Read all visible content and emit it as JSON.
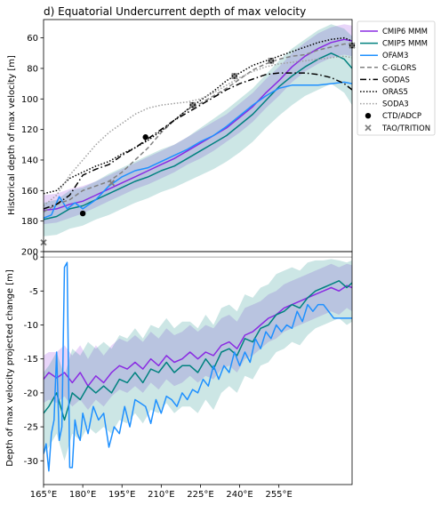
{
  "figure": {
    "title": "d) Equatorial Undercurrent depth of max velocity"
  },
  "chart_data": [
    {
      "type": "line",
      "ylabel": "Historical depth of max velocity [m]",
      "xlabel": "",
      "xlim": [
        165,
        283
      ],
      "ylim": [
        200,
        48
      ],
      "y_inverted": true,
      "yticks": [
        60,
        80,
        100,
        120,
        140,
        160,
        180,
        200
      ],
      "legend_position": "outside-right",
      "series": [
        {
          "name": "CMIP6 MMM",
          "color": "#8a2be2",
          "style": "solid",
          "x": [
            165,
            170,
            175,
            180,
            185,
            190,
            195,
            200,
            205,
            210,
            215,
            220,
            225,
            230,
            235,
            240,
            245,
            250,
            255,
            260,
            265,
            270,
            275,
            280,
            283
          ],
          "y": [
            173,
            172,
            169,
            167,
            163,
            159,
            155,
            151,
            147,
            143,
            139,
            134,
            129,
            124,
            119,
            112,
            105,
            96,
            88,
            79,
            72,
            67,
            63,
            61,
            62
          ],
          "band_lower": [
            182,
            181,
            178,
            175,
            171,
            167,
            163,
            159,
            156,
            152,
            148,
            143,
            139,
            134,
            128,
            122,
            115,
            106,
            98,
            89,
            82,
            77,
            73,
            71,
            72
          ],
          "band_upper": [
            163,
            162,
            159,
            157,
            154,
            150,
            146,
            142,
            138,
            134,
            130,
            125,
            120,
            115,
            110,
            103,
            96,
            87,
            79,
            70,
            63,
            57,
            53,
            51,
            52
          ]
        },
        {
          "name": "CMIP5 MMM",
          "color": "#00827f",
          "style": "solid",
          "x": [
            165,
            170,
            175,
            180,
            185,
            190,
            195,
            200,
            205,
            210,
            215,
            220,
            225,
            230,
            235,
            240,
            245,
            250,
            255,
            260,
            265,
            270,
            275,
            280,
            283
          ],
          "y": [
            179,
            177,
            172,
            170,
            166,
            162,
            158,
            154,
            151,
            147,
            144,
            139,
            134,
            129,
            124,
            117,
            110,
            101,
            92,
            85,
            79,
            74,
            70,
            74,
            80
          ],
          "band_lower": [
            190,
            189,
            185,
            183,
            179,
            176,
            172,
            168,
            165,
            161,
            158,
            154,
            150,
            146,
            141,
            135,
            128,
            119,
            111,
            104,
            98,
            94,
            90,
            96,
            104
          ],
          "band_upper": [
            168,
            166,
            160,
            158,
            154,
            149,
            145,
            141,
            137,
            133,
            130,
            125,
            119,
            113,
            107,
            100,
            93,
            84,
            75,
            67,
            61,
            55,
            51,
            54,
            59
          ]
        },
        {
          "name": "OFAM3",
          "color": "#1e90ff",
          "style": "solid",
          "x": [
            165,
            168,
            171,
            174,
            177,
            180,
            185,
            190,
            195,
            200,
            205,
            210,
            215,
            220,
            225,
            230,
            235,
            240,
            245,
            250,
            255,
            260,
            265,
            270,
            275,
            280,
            283
          ],
          "y": [
            178,
            176,
            164,
            172,
            168,
            172,
            166,
            157,
            151,
            147,
            145,
            141,
            137,
            133,
            128,
            124,
            118,
            111,
            104,
            98,
            93,
            91,
            91,
            91,
            90,
            89,
            90
          ]
        },
        {
          "name": "C-GLORS",
          "color": "#808080",
          "style": "dashed",
          "x": [
            165,
            170,
            175,
            180,
            185,
            190,
            195,
            200,
            205,
            210,
            215,
            220,
            225,
            230,
            235,
            240,
            245,
            250,
            255,
            260,
            265,
            270,
            275,
            280,
            283
          ],
          "y": [
            174,
            169,
            166,
            160,
            157,
            154,
            148,
            140,
            132,
            122,
            114,
            107,
            103,
            98,
            93,
            87,
            81,
            77,
            74,
            72,
            71,
            68,
            66,
            64,
            64
          ]
        },
        {
          "name": "GODAS",
          "color": "#000000",
          "style": "dashdot",
          "x": [
            165,
            170,
            175,
            180,
            185,
            190,
            195,
            200,
            205,
            210,
            215,
            220,
            225,
            230,
            235,
            240,
            245,
            250,
            255,
            260,
            265,
            270,
            275,
            280,
            283
          ],
          "y": [
            172,
            169,
            163,
            150,
            146,
            143,
            137,
            132,
            126,
            120,
            114,
            109,
            104,
            99,
            94,
            90,
            87,
            84,
            83,
            83,
            83,
            84,
            86,
            90,
            94
          ]
        },
        {
          "name": "ORAS5",
          "color": "#000000",
          "style": "dotted",
          "x": [
            165,
            170,
            175,
            180,
            185,
            190,
            195,
            200,
            205,
            210,
            215,
            220,
            225,
            230,
            235,
            240,
            245,
            250,
            255,
            260,
            265,
            270,
            275,
            280,
            283
          ],
          "y": [
            162,
            160,
            152,
            148,
            144,
            141,
            136,
            132,
            127,
            121,
            114,
            107,
            101,
            95,
            88,
            83,
            78,
            75,
            72,
            69,
            66,
            63,
            61,
            60,
            62
          ]
        },
        {
          "name": "SODA3",
          "color": "#a0a0a0",
          "style": "dotted",
          "x": [
            165,
            170,
            175,
            180,
            185,
            190,
            195,
            200,
            205,
            210,
            215,
            220,
            225,
            230,
            235,
            240,
            245,
            250,
            255,
            260,
            265,
            270,
            275,
            280,
            283
          ],
          "y": [
            170,
            163,
            150,
            140,
            130,
            122,
            116,
            110,
            106,
            104,
            103,
            102,
            100,
            96,
            91,
            86,
            82,
            79,
            77,
            76,
            75,
            74,
            73,
            72,
            73
          ]
        },
        {
          "name": "CTD/ADCP",
          "color": "#000000",
          "style": "marker-circle",
          "x": [
            180,
            204,
            222,
            238,
            252,
            283
          ],
          "y": [
            175,
            125,
            104,
            85,
            75,
            65
          ]
        },
        {
          "name": "TAO/TRITION",
          "color": "#808080",
          "style": "marker-x",
          "x": [
            165,
            191,
            222,
            238,
            252,
            283
          ],
          "y": [
            194,
            155,
            104,
            85,
            75,
            65
          ]
        }
      ]
    },
    {
      "type": "line",
      "ylabel": "Depth of max velocity projected change [m]",
      "xlabel": "",
      "xlim": [
        165,
        283
      ],
      "ylim": [
        -33.5,
        0.8
      ],
      "xticks": [
        165,
        180,
        195,
        210,
        225,
        240,
        255
      ],
      "xtick_labels": [
        "165°E",
        "180°E",
        "195°E",
        "210°E",
        "225°E",
        "240°E",
        "255°E"
      ],
      "yticks": [
        0,
        -5,
        -10,
        -15,
        -20,
        -25,
        -30
      ],
      "zero_line": true,
      "series": [
        {
          "name": "CMIP6 MMM",
          "color": "#8a2be2",
          "style": "solid",
          "x": [
            165,
            167,
            170,
            173,
            176,
            179,
            182,
            185,
            188,
            191,
            194,
            197,
            200,
            203,
            206,
            209,
            212,
            215,
            218,
            221,
            224,
            227,
            230,
            233,
            236,
            239,
            242,
            245,
            248,
            251,
            254,
            257,
            260,
            263,
            266,
            269,
            272,
            275,
            278,
            281,
            283
          ],
          "y": [
            -18,
            -17,
            -17.8,
            -17,
            -18.5,
            -17,
            -19,
            -17.5,
            -18.5,
            -17,
            -16,
            -16.5,
            -15.5,
            -16.5,
            -15,
            -16,
            -14.5,
            -15.5,
            -15,
            -14,
            -15,
            -14,
            -14.5,
            -13,
            -12.5,
            -13.5,
            -11.5,
            -11,
            -10,
            -9,
            -8.5,
            -7.5,
            -7,
            -6.5,
            -6,
            -5.5,
            -5,
            -4.5,
            -5,
            -4.2,
            -4.5
          ],
          "band_lower": [
            -21.5,
            -21,
            -21.5,
            -20.5,
            -22,
            -21,
            -22.5,
            -21,
            -22,
            -20.5,
            -19.5,
            -20,
            -19,
            -20,
            -18.5,
            -19.5,
            -18,
            -19,
            -18.5,
            -17.5,
            -18.5,
            -17.5,
            -18,
            -16.5,
            -16,
            -17,
            -15,
            -14.5,
            -13.5,
            -12.5,
            -12,
            -11,
            -10.5,
            -10,
            -9.5,
            -9,
            -8.5,
            -8,
            -8.5,
            -7.5,
            -8
          ],
          "band_upper": [
            -14.5,
            -14,
            -14,
            -13,
            -14.5,
            -13,
            -15,
            -13,
            -14.5,
            -13,
            -12,
            -12.5,
            -11.5,
            -12.5,
            -11,
            -12,
            -10.5,
            -11.5,
            -11,
            -10,
            -11,
            -10,
            -10.5,
            -9,
            -8.5,
            -9.5,
            -7.5,
            -7,
            -6.5,
            -5.5,
            -5,
            -4,
            -3.5,
            -3,
            -2.5,
            -2,
            -1.5,
            -1,
            -1.5,
            -1,
            -1.2
          ]
        },
        {
          "name": "CMIP5 MMM",
          "color": "#00827f",
          "style": "solid",
          "x": [
            165,
            167,
            170,
            173,
            176,
            179,
            182,
            185,
            188,
            191,
            194,
            197,
            200,
            203,
            206,
            209,
            212,
            215,
            218,
            221,
            224,
            227,
            230,
            233,
            236,
            239,
            242,
            245,
            248,
            251,
            254,
            257,
            260,
            263,
            266,
            269,
            272,
            275,
            278,
            281,
            283
          ],
          "y": [
            -23,
            -22,
            -20,
            -24,
            -20,
            -21,
            -19,
            -20,
            -19,
            -20,
            -18,
            -18.5,
            -17,
            -18.5,
            -16.5,
            -17,
            -15.5,
            -17,
            -16,
            -16,
            -17,
            -15,
            -16.5,
            -14,
            -13.5,
            -14.5,
            -12,
            -12.5,
            -10.5,
            -10,
            -8.5,
            -8,
            -7,
            -7.5,
            -6,
            -5,
            -4.5,
            -4,
            -3.5,
            -4.5,
            -3.8
          ],
          "band_lower": [
            -29,
            -28,
            -26,
            -30,
            -26,
            -27,
            -25,
            -26,
            -25,
            -26,
            -24,
            -24.5,
            -23,
            -24.5,
            -22.5,
            -23,
            -21.5,
            -23,
            -22,
            -22,
            -23,
            -21,
            -22.5,
            -20,
            -19,
            -20,
            -17.5,
            -18,
            -16,
            -15.5,
            -14,
            -13.5,
            -12.5,
            -13,
            -11.5,
            -10.5,
            -10,
            -9.5,
            -9,
            -10,
            -9.5
          ],
          "band_upper": [
            -17,
            -16,
            -14,
            -17.5,
            -13.5,
            -14.5,
            -12.5,
            -13.5,
            -12.5,
            -13.5,
            -11.5,
            -12,
            -10.5,
            -12,
            -10,
            -10.5,
            -9,
            -10.5,
            -9.5,
            -9.5,
            -10.5,
            -8.5,
            -10,
            -7.5,
            -7,
            -8,
            -5.5,
            -6,
            -4.5,
            -4,
            -2.5,
            -2,
            -1.5,
            -2,
            -0.8,
            -0.5,
            -0.5,
            -0.3,
            -0.5,
            -0.8,
            -0.5
          ]
        },
        {
          "name": "OFAM3",
          "color": "#1e90ff",
          "style": "solid",
          "x": [
            165,
            166,
            167,
            168,
            169,
            170,
            171,
            172,
            173,
            174,
            175,
            176,
            177,
            178,
            179,
            180,
            182,
            184,
            186,
            188,
            190,
            192,
            194,
            196,
            198,
            200,
            202,
            204,
            206,
            208,
            210,
            212,
            214,
            216,
            218,
            220,
            222,
            224,
            226,
            228,
            230,
            232,
            234,
            236,
            238,
            240,
            242,
            244,
            246,
            248,
            250,
            252,
            254,
            256,
            258,
            260,
            262,
            264,
            266,
            268,
            270,
            272,
            274,
            276,
            278,
            280,
            283
          ],
          "y": [
            -29,
            -27.5,
            -31.5,
            -26,
            -24,
            -14,
            -27,
            -25,
            -1.5,
            -0.8,
            -31,
            -31,
            -24,
            -26,
            -27,
            -23,
            -26,
            -22,
            -24,
            -23,
            -28,
            -25,
            -26,
            -22,
            -25,
            -21,
            -21.5,
            -22,
            -24.5,
            -21,
            -23,
            -20.5,
            -21,
            -22,
            -20,
            -21,
            -19.5,
            -20,
            -18,
            -19,
            -16,
            -18,
            -16,
            -17,
            -14,
            -16,
            -14,
            -15.5,
            -12,
            -13.5,
            -11,
            -12,
            -10,
            -11,
            -10,
            -10.5,
            -8,
            -9.5,
            -7,
            -8,
            -7,
            -7,
            -8,
            -9,
            -9,
            -9,
            -9
          ]
        }
      ]
    }
  ]
}
